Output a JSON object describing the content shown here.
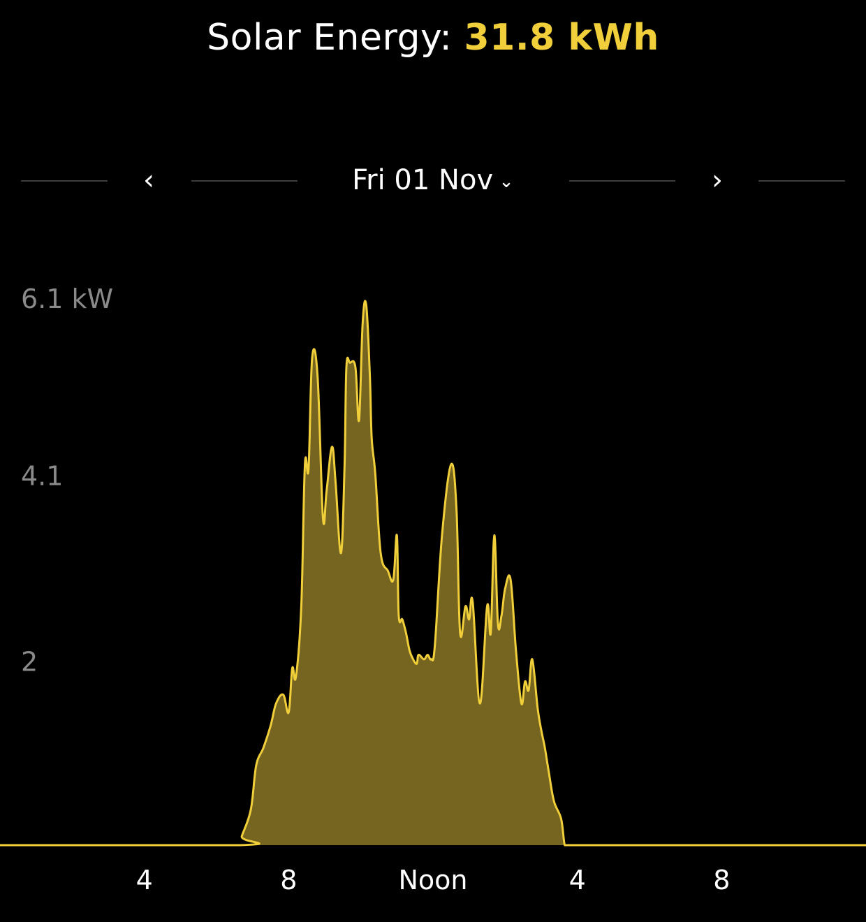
{
  "header": {
    "title_prefix": "Solar Energy: ",
    "title_value": "31.8 kWh"
  },
  "date_nav": {
    "prev_icon": "chevron-left-icon",
    "next_icon": "chevron-right-icon",
    "date_label": "Fri 01 Nov",
    "dropdown_icon": "chevron-down-icon"
  },
  "colors": {
    "accent": "#f0cf3a",
    "fill": "#766520",
    "background": "#000000"
  },
  "chart_data": {
    "type": "area",
    "title": "",
    "xlabel": "",
    "ylabel": "",
    "unit": "kW",
    "y_ticks": [
      {
        "value": 2,
        "label": "2"
      },
      {
        "value": 4.1,
        "label": "4.1"
      },
      {
        "value": 6.1,
        "label": "6.1 kW"
      }
    ],
    "x_ticks": [
      {
        "hour": 4,
        "label": "4"
      },
      {
        "hour": 8,
        "label": "8"
      },
      {
        "hour": 12,
        "label": "Noon"
      },
      {
        "hour": 16,
        "label": "4"
      },
      {
        "hour": 20,
        "label": "8"
      }
    ],
    "xlim": [
      0,
      24
    ],
    "ylim": [
      0,
      6.1
    ],
    "grid": false,
    "series": [
      {
        "x": [
          0,
          6.65,
          6.7,
          6.95,
          7.1,
          7.3,
          7.5,
          7.65,
          7.85,
          8.0,
          8.1,
          8.2,
          8.35,
          8.45,
          8.55,
          8.65,
          8.8,
          8.95,
          9.05,
          9.2,
          9.3,
          9.45,
          9.55,
          9.6,
          9.7,
          9.85,
          9.95,
          10.05,
          10.15,
          10.25,
          10.3,
          10.4,
          10.55,
          10.75,
          10.9,
          11.0,
          11.05,
          11.15,
          11.25,
          11.35,
          11.45,
          11.55,
          11.6,
          11.75,
          11.85,
          11.95,
          12.05,
          12.25,
          12.5,
          12.65,
          12.75,
          12.9,
          13.0,
          13.1,
          13.3,
          13.5,
          13.6,
          13.7,
          13.8,
          13.9,
          14.0,
          14.15,
          14.3,
          14.45,
          14.55,
          14.65,
          14.75,
          14.9,
          15.0,
          15.1,
          15.2,
          15.35,
          15.55,
          15.65,
          15.75,
          15.85,
          15.95,
          16.05,
          16.15,
          16.25,
          16.35,
          16.5,
          16.6,
          16.7,
          16.85,
          16.95,
          17.05,
          17.15,
          17.25,
          17.35,
          17.5,
          17.6,
          17.7,
          17.8,
          17.9,
          18.0,
          18.1,
          18.3,
          18.5,
          18.6,
          24
        ],
        "y": [
          0,
          0,
          0.1,
          0.4,
          0.9,
          1.1,
          1.35,
          1.6,
          1.7,
          1.5,
          2.0,
          1.9,
          2.7,
          4.3,
          4.25,
          5.5,
          5.3,
          3.7,
          4.0,
          4.5,
          4.1,
          3.3,
          4.3,
          5.4,
          5.45,
          5.4,
          4.8,
          5.9,
          6.1,
          5.3,
          4.6,
          4.2,
          3.3,
          3.1,
          3.0,
          3.5,
          2.6,
          2.55,
          2.4,
          2.2,
          2.1,
          2.05,
          2.15,
          2.1,
          2.15,
          2.1,
          2.25,
          3.5,
          4.3,
          3.8,
          2.4,
          2.7,
          2.55,
          2.75,
          1.6,
          2.7,
          2.4,
          3.5,
          2.5,
          2.6,
          2.9,
          3.0,
          2.2,
          1.6,
          1.85,
          1.75,
          2.1,
          1.55,
          1.3,
          1.1,
          0.85,
          0.5,
          0.3,
          0,
          0,
          0,
          0,
          0,
          0,
          0,
          0,
          0,
          0,
          0,
          0,
          0,
          0,
          0,
          0,
          0,
          0,
          0,
          0,
          0,
          0,
          0,
          0,
          0,
          0,
          0,
          0
        ]
      }
    ]
  }
}
